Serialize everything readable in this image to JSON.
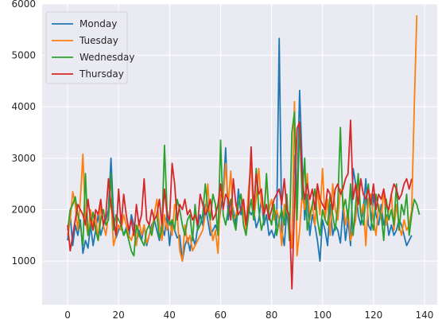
{
  "chart_data": {
    "type": "line",
    "title": "",
    "xlabel": "",
    "ylabel": "",
    "xlim": [
      -10,
      145
    ],
    "ylim": [
      150,
      6000
    ],
    "x_ticks": [
      0,
      20,
      40,
      60,
      80,
      100,
      120,
      140
    ],
    "y_ticks": [
      1000,
      2000,
      3000,
      4000,
      5000,
      6000
    ],
    "grid": true,
    "background": "#eaeaf2",
    "legend_position": "top-left",
    "series": [
      {
        "name": "Monday",
        "color": "#1f77b4",
        "x": [
          0,
          1,
          2,
          3,
          4,
          5,
          6,
          7,
          8,
          9,
          10,
          11,
          12,
          13,
          14,
          15,
          16,
          17,
          18,
          19,
          20,
          21,
          22,
          23,
          24,
          25,
          26,
          27,
          28,
          29,
          30,
          31,
          32,
          33,
          34,
          35,
          36,
          37,
          38,
          39,
          40,
          41,
          42,
          43,
          44,
          45,
          46,
          47,
          48,
          49,
          50,
          51,
          52,
          53,
          54,
          55,
          56,
          57,
          58,
          59,
          60,
          61,
          62,
          63,
          64,
          65,
          66,
          67,
          68,
          69,
          70,
          71,
          72,
          73,
          74,
          75,
          76,
          77,
          78,
          79,
          80,
          81,
          82,
          83,
          84,
          85,
          86,
          87,
          88,
          89,
          90,
          91,
          92,
          93,
          94,
          95,
          96,
          97,
          98,
          99,
          100,
          101,
          102,
          103,
          104,
          105,
          106,
          107,
          108,
          109,
          110,
          111,
          112,
          113,
          114,
          115,
          116,
          117,
          118,
          119,
          120,
          121,
          122,
          123,
          124,
          125,
          126,
          127,
          128,
          129,
          130,
          131,
          132,
          133,
          134,
          135
        ],
        "values": [
          1400,
          1900,
          1300,
          1700,
          1500,
          1800,
          1150,
          1400,
          1250,
          1700,
          1300,
          1600,
          1900,
          1500,
          1700,
          1800,
          2000,
          3000,
          1900,
          1450,
          1600,
          1700,
          1500,
          1650,
          1450,
          1900,
          1700,
          1350,
          1600,
          1400,
          1700,
          1300,
          1500,
          1700,
          1800,
          1600,
          1400,
          1700,
          1500,
          1900,
          1300,
          1800,
          1600,
          1450,
          1500,
          1000,
          1300,
          1450,
          1200,
          1500,
          1300,
          1650,
          1900,
          1700,
          2100,
          1800,
          1500,
          1600,
          1700,
          1550,
          2000,
          2300,
          3200,
          1800,
          2200,
          2000,
          1700,
          2400,
          1900,
          2100,
          1800,
          2000,
          1900,
          2000,
          1650,
          1800,
          2200,
          1700,
          1900,
          1500,
          1600,
          1450,
          1700,
          5330,
          1600,
          1300,
          2000,
          1500,
          1400,
          3050,
          2200,
          4320,
          2900,
          1800,
          2300,
          1500,
          1900,
          1700,
          1400,
          1000,
          1800,
          1600,
          1300,
          2100,
          1500,
          1700,
          1600,
          1350,
          2000,
          1400,
          1800,
          1300,
          2800,
          2500,
          1900,
          1700,
          2000,
          2600,
          1700,
          1600,
          2300,
          1900,
          1700,
          2100,
          1700,
          1900,
          1500,
          1700,
          1500,
          1600,
          1800,
          1700,
          1500,
          1300,
          1400,
          1500
        ]
      },
      {
        "name": "Tuesday",
        "color": "#ff7f0e",
        "x": [
          0,
          1,
          2,
          3,
          4,
          5,
          6,
          7,
          8,
          9,
          10,
          11,
          12,
          13,
          14,
          15,
          16,
          17,
          18,
          19,
          20,
          21,
          22,
          23,
          24,
          25,
          26,
          27,
          28,
          29,
          30,
          31,
          32,
          33,
          34,
          35,
          36,
          37,
          38,
          39,
          40,
          41,
          42,
          43,
          44,
          45,
          46,
          47,
          48,
          49,
          50,
          51,
          52,
          53,
          54,
          55,
          56,
          57,
          58,
          59,
          60,
          61,
          62,
          63,
          64,
          65,
          66,
          67,
          68,
          69,
          70,
          71,
          72,
          73,
          74,
          75,
          76,
          77,
          78,
          79,
          80,
          81,
          82,
          83,
          84,
          85,
          86,
          87,
          88,
          89,
          90,
          91,
          92,
          93,
          94,
          95,
          96,
          97,
          98,
          99,
          100,
          101,
          102,
          103,
          104,
          105,
          106,
          107,
          108,
          109,
          110,
          111,
          112,
          113,
          114,
          115,
          116,
          117,
          118,
          119,
          120,
          121,
          122,
          123,
          124,
          125,
          126,
          127,
          128,
          129,
          130,
          131,
          132,
          133,
          134,
          135,
          136,
          137
        ],
        "values": [
          1500,
          1800,
          2350,
          2100,
          1600,
          2200,
          3080,
          1800,
          1500,
          2000,
          1700,
          1900,
          1400,
          2100,
          1700,
          1500,
          1900,
          2200,
          1300,
          1500,
          1700,
          1600,
          1900,
          1700,
          1500,
          1400,
          1600,
          1300,
          1800,
          1500,
          1700,
          1350,
          1500,
          1600,
          1900,
          2200,
          1700,
          1400,
          1900,
          1600,
          1800,
          1500,
          2100,
          1900,
          1200,
          1000,
          1700,
          1350,
          1500,
          1200,
          1300,
          1400,
          1500,
          1600,
          1900,
          2500,
          1700,
          1400,
          1600,
          1150,
          2300,
          2200,
          2900,
          2100,
          2750,
          1800,
          1900,
          2100,
          2300,
          2000,
          1600,
          2400,
          2900,
          1800,
          2200,
          2800,
          2100,
          1900,
          2600,
          2000,
          2200,
          1800,
          2000,
          1800,
          1300,
          2100,
          2000,
          1700,
          1250,
          4100,
          1100,
          1600,
          2300,
          2000,
          2700,
          1800,
          2100,
          1700,
          2400,
          1900,
          2800,
          1800,
          2200,
          1500,
          2500,
          2000,
          1800,
          2400,
          2200,
          1700,
          2000,
          1400,
          1600,
          1800,
          2500,
          1900,
          2100,
          1300,
          2200,
          2300,
          1800,
          1500,
          2100,
          1800,
          2400,
          1700,
          2000,
          2300,
          1600,
          2100,
          1700,
          1500,
          1800,
          1600,
          1700,
          2000,
          4000,
          5780
        ]
      },
      {
        "name": "Wednesday",
        "color": "#2ca02c",
        "x": [
          0,
          1,
          2,
          3,
          4,
          5,
          6,
          7,
          8,
          9,
          10,
          11,
          12,
          13,
          14,
          15,
          16,
          17,
          18,
          19,
          20,
          21,
          22,
          23,
          24,
          25,
          26,
          27,
          28,
          29,
          30,
          31,
          32,
          33,
          34,
          35,
          36,
          37,
          38,
          39,
          40,
          41,
          42,
          43,
          44,
          45,
          46,
          47,
          48,
          49,
          50,
          51,
          52,
          53,
          54,
          55,
          56,
          57,
          58,
          59,
          60,
          61,
          62,
          63,
          64,
          65,
          66,
          67,
          68,
          69,
          70,
          71,
          72,
          73,
          74,
          75,
          76,
          77,
          78,
          79,
          80,
          81,
          82,
          83,
          84,
          85,
          86,
          87,
          88,
          89,
          90,
          91,
          92,
          93,
          94,
          95,
          96,
          97,
          98,
          99,
          100,
          101,
          102,
          103,
          104,
          105,
          106,
          107,
          108,
          109,
          110,
          111,
          112,
          113,
          114,
          115,
          116,
          117,
          118,
          119,
          120,
          121,
          122,
          123,
          124,
          125,
          126,
          127,
          128,
          129,
          130,
          131,
          132,
          133,
          134,
          135,
          136,
          137,
          138
        ],
        "values": [
          1600,
          2000,
          2100,
          2250,
          1900,
          1700,
          1300,
          2700,
          1500,
          1700,
          1950,
          1600,
          1400,
          1800,
          2000,
          1700,
          1800,
          2700,
          1600,
          1900,
          1800,
          1700,
          1500,
          1600,
          1400,
          1200,
          1100,
          1700,
          1500,
          1400,
          1300,
          1600,
          1700,
          1500,
          1800,
          1900,
          1450,
          1600,
          3250,
          2000,
          1700,
          1800,
          1600,
          2200,
          2000,
          1700,
          1500,
          1800,
          1900,
          1400,
          2100,
          1600,
          1700,
          1900,
          2500,
          2000,
          1800,
          2300,
          2100,
          1500,
          3350,
          1900,
          1700,
          2000,
          2200,
          1800,
          1600,
          2100,
          2300,
          1700,
          1500,
          1900,
          2200,
          1800,
          2800,
          2000,
          1600,
          1800,
          2700,
          1900,
          1700,
          2100,
          1500,
          1800,
          2000,
          1700,
          2300,
          1400,
          3500,
          3900,
          1800,
          3700,
          2200,
          3000,
          1600,
          1900,
          2100,
          2400,
          1800,
          1500,
          2000,
          1800,
          1700,
          2300,
          1900,
          1600,
          2100,
          3600,
          2000,
          2200,
          1800,
          2500,
          1500,
          2100,
          2700,
          1900,
          1700,
          2200,
          2500,
          1800,
          1600,
          2300,
          2000,
          1900,
          1400,
          2200,
          1800,
          2000,
          1700,
          2500,
          1600,
          2100,
          1900,
          2300,
          1500,
          1900,
          2200,
          2100,
          1900
        ]
      },
      {
        "name": "Thursday",
        "color": "#d62728",
        "x": [
          0,
          1,
          2,
          3,
          4,
          5,
          6,
          7,
          8,
          9,
          10,
          11,
          12,
          13,
          14,
          15,
          16,
          17,
          18,
          19,
          20,
          21,
          22,
          23,
          24,
          25,
          26,
          27,
          28,
          29,
          30,
          31,
          32,
          33,
          34,
          35,
          36,
          37,
          38,
          39,
          40,
          41,
          42,
          43,
          44,
          45,
          46,
          47,
          48,
          49,
          50,
          51,
          52,
          53,
          54,
          55,
          56,
          57,
          58,
          59,
          60,
          61,
          62,
          63,
          64,
          65,
          66,
          67,
          68,
          69,
          70,
          71,
          72,
          73,
          74,
          75,
          76,
          77,
          78,
          79,
          80,
          81,
          82,
          83,
          84,
          85,
          86,
          87,
          88,
          89,
          90,
          91,
          92,
          93,
          94,
          95,
          96,
          97,
          98,
          99,
          100,
          101,
          102,
          103,
          104,
          105,
          106,
          107,
          108,
          109,
          110,
          111,
          112,
          113,
          114,
          115,
          116,
          117,
          118,
          119,
          120,
          121,
          122,
          123,
          124,
          125,
          126,
          127,
          128,
          129,
          130,
          131,
          132,
          133,
          134,
          135
        ],
        "values": [
          1700,
          1200,
          1500,
          1800,
          2100,
          2000,
          1900,
          1700,
          2200,
          1800,
          1600,
          2000,
          1900,
          2200,
          1700,
          1900,
          2600,
          2100,
          1800,
          1500,
          2400,
          1700,
          2300,
          1900,
          1600,
          1800,
          1500,
          2100,
          1700,
          1900,
          2600,
          1800,
          1700,
          2000,
          1800,
          1900,
          2200,
          1700,
          2400,
          1900,
          1800,
          2900,
          2500,
          1800,
          2100,
          2000,
          2200,
          1900,
          2000,
          1800,
          1900,
          1700,
          2300,
          2100,
          1900,
          2000,
          2200,
          1800,
          1900,
          2100,
          2500,
          2000,
          2300,
          2200,
          1800,
          2600,
          2100,
          1900,
          2000,
          2200,
          1700,
          2100,
          3220,
          2000,
          2700,
          2300,
          2400,
          1900,
          2100,
          1800,
          2000,
          2200,
          2300,
          2400,
          2100,
          2600,
          2000,
          1900,
          460,
          2000,
          3580,
          3700,
          2600,
          2200,
          2500,
          2200,
          2400,
          2000,
          2500,
          2200,
          2100,
          2000,
          2400,
          2300,
          2000,
          2400,
          2500,
          2300,
          2400,
          2600,
          2700,
          3740,
          2200,
          2500,
          2100,
          2600,
          2300,
          2200,
          2400,
          2100,
          2500,
          2000,
          2300,
          2200,
          2400,
          2100,
          2000,
          2300,
          2500,
          2400,
          2200,
          2300,
          2500,
          2600,
          2400,
          2600
        ]
      }
    ]
  }
}
